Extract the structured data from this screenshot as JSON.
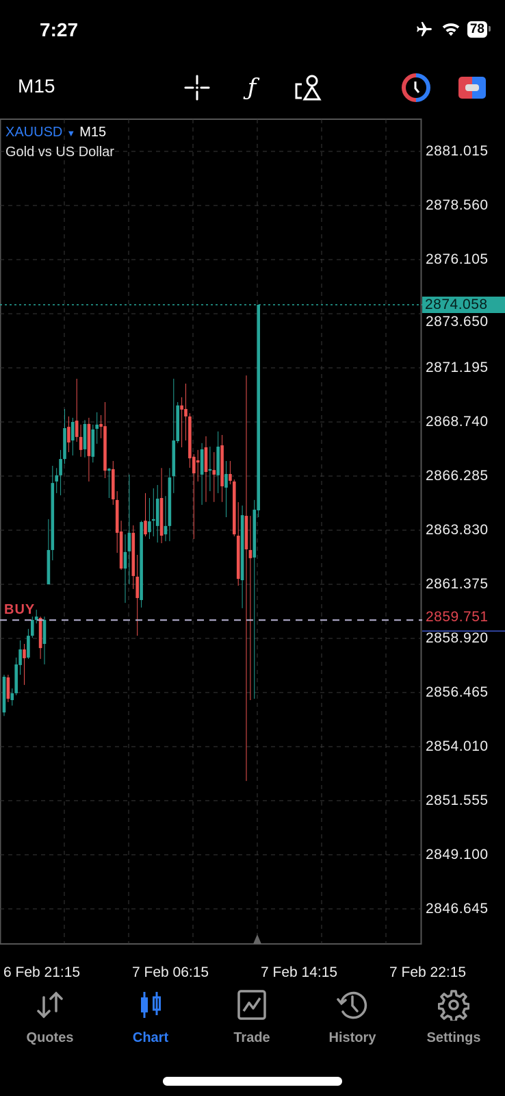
{
  "status_bar": {
    "time": "7:27",
    "battery": "78",
    "icons": [
      "airplane-icon",
      "wifi-icon",
      "battery-icon"
    ]
  },
  "toolbar": {
    "timeframe": "M15",
    "tools": [
      "crosshair-icon",
      "indicators-f-icon",
      "objects-icon",
      "one-click-trading-icon",
      "trade-panel-icon"
    ]
  },
  "chart_header": {
    "symbol": "XAUUSD",
    "timeframe": "M15",
    "description": "Gold vs US Dollar"
  },
  "colors": {
    "bull": "#26a69a",
    "bear": "#ef5350",
    "accent": "#2f7cf6",
    "buy_line": "#b9b4d6",
    "grid": "#3a3a3a"
  },
  "chart_data": {
    "type": "candlestick",
    "y_ticks": [
      "2881.015",
      "2878.560",
      "2876.105",
      "2873.650",
      "2871.195",
      "2868.740",
      "2866.285",
      "2863.830",
      "2861.375",
      "2858.920",
      "2856.465",
      "2854.010",
      "2851.555",
      "2849.100",
      "2846.645"
    ],
    "ylim": [
      2845.5,
      2882.6
    ],
    "x_ticks": [
      "6 Feb 21:15",
      "7 Feb 06:15",
      "7 Feb 14:15",
      "7 Feb 22:15"
    ],
    "grid": true,
    "current_price": "2874.058",
    "buy_position": {
      "label": "BUY",
      "price": "2859.751"
    },
    "candles": [
      [
        2855.56,
        2857.27,
        2855.4,
        2857.18
      ],
      [
        2857.15,
        2857.27,
        2856.03,
        2856.18
      ],
      [
        2856.12,
        2856.65,
        2855.87,
        2856.43
      ],
      [
        2856.43,
        2858.05,
        2856.34,
        2857.74
      ],
      [
        2857.71,
        2858.83,
        2857.27,
        2858.42
      ],
      [
        2858.42,
        2858.67,
        2856.81,
        2858.02
      ],
      [
        2858.05,
        2859.35,
        2857.99,
        2859.04
      ],
      [
        2859.04,
        2859.91,
        2858.95,
        2859.76
      ],
      [
        2859.76,
        2860.22,
        2859.6,
        2859.91
      ],
      [
        2859.85,
        2859.91,
        2857.99,
        2858.48
      ],
      [
        2858.67,
        2859.91,
        2857.74,
        2859.76
      ],
      [
        2861.37,
        2864.33,
        2861.37,
        2862.93
      ],
      [
        2862.93,
        2866.75,
        2862.46,
        2865.97
      ],
      [
        2866.04,
        2866.65,
        2865.51,
        2866.32
      ],
      [
        2866.32,
        2867.47,
        2865.41,
        2867.06
      ],
      [
        2867.06,
        2869.33,
        2866.84,
        2868.46
      ],
      [
        2868.52,
        2868.99,
        2867.37,
        2867.81
      ],
      [
        2867.9,
        2868.93,
        2867.22,
        2868.74
      ],
      [
        2868.8,
        2870.7,
        2867.84,
        2868.06
      ],
      [
        2868.06,
        2868.62,
        2867.16,
        2867.47
      ],
      [
        2867.5,
        2868.83,
        2867.13,
        2868.65
      ],
      [
        2868.65,
        2868.93,
        2866.04,
        2867.19
      ],
      [
        2867.16,
        2868.62,
        2866.9,
        2868.4
      ],
      [
        2868.43,
        2869.18,
        2867.75,
        2868.62
      ],
      [
        2868.65,
        2869.05,
        2868.0,
        2868.52
      ],
      [
        2868.55,
        2869.64,
        2866.19,
        2866.53
      ],
      [
        2866.53,
        2866.65,
        2865.29,
        2866.62
      ],
      [
        2866.6,
        2866.97,
        2864.98,
        2865.23
      ],
      [
        2865.2,
        2865.6,
        2862.8,
        2863.71
      ],
      [
        2863.77,
        2864.26,
        2862.03,
        2862.09
      ],
      [
        2862.09,
        2863.64,
        2860.53,
        2862.84
      ],
      [
        2862.87,
        2866.35,
        2861.37,
        2863.71
      ],
      [
        2863.71,
        2864.05,
        2861.16,
        2861.75
      ],
      [
        2861.72,
        2862.71,
        2859.04,
        2860.75
      ],
      [
        2860.66,
        2864.26,
        2860.32,
        2864.2
      ],
      [
        2864.26,
        2865.51,
        2863.55,
        2863.64
      ],
      [
        2863.74,
        2865.29,
        2863.43,
        2864.23
      ],
      [
        2864.26,
        2865.73,
        2863.55,
        2864.33
      ],
      [
        2864.02,
        2865.88,
        2863.27,
        2865.26
      ],
      [
        2865.29,
        2866.65,
        2863.24,
        2863.58
      ],
      [
        2863.64,
        2865.38,
        2863.33,
        2864.02
      ],
      [
        2864.02,
        2866.65,
        2863.33,
        2866.22
      ],
      [
        2866.28,
        2870.7,
        2865.51,
        2867.9
      ],
      [
        2867.87,
        2869.64,
        2867.78,
        2869.49
      ],
      [
        2869.49,
        2869.86,
        2867.59,
        2869.3
      ],
      [
        2869.33,
        2870.48,
        2867.9,
        2868.99
      ],
      [
        2868.99,
        2869.14,
        2866.66,
        2867.09
      ],
      [
        2867.16,
        2867.28,
        2863.43,
        2866.41
      ],
      [
        2867.0,
        2867.47,
        2866.04,
        2866.9
      ],
      [
        2866.35,
        2867.78,
        2864.98,
        2867.5
      ],
      [
        2867.59,
        2868.09,
        2865.11,
        2866.47
      ],
      [
        2866.53,
        2867.62,
        2865.6,
        2866.6
      ],
      [
        2866.56,
        2867.37,
        2865.11,
        2866.35
      ],
      [
        2866.32,
        2868.31,
        2865.51,
        2867.62
      ],
      [
        2867.68,
        2868.15,
        2865.11,
        2865.82
      ],
      [
        2865.76,
        2866.97,
        2864.42,
        2866.38
      ],
      [
        2866.38,
        2866.97,
        2865.91,
        2866.07
      ],
      [
        2866.04,
        2866.13,
        2863.55,
        2863.64
      ],
      [
        2863.58,
        2865.1,
        2861.31,
        2861.62
      ],
      [
        2861.56,
        2864.95,
        2860.29,
        2864.51
      ],
      [
        2864.48,
        2870.85,
        2852.45,
        2862.96
      ],
      [
        2862.93,
        2864.48,
        2856.12,
        2862.56
      ],
      [
        2862.59,
        2865.2,
        2856.18,
        2864.76
      ],
      [
        2864.73,
        2874.06,
        2864.42,
        2874.058
      ]
    ]
  },
  "tabs": [
    {
      "label": "Quotes",
      "icon": "quotes-arrows-icon"
    },
    {
      "label": "Chart",
      "icon": "chart-candles-icon",
      "active": true
    },
    {
      "label": "Trade",
      "icon": "trade-icon"
    },
    {
      "label": "History",
      "icon": "history-icon"
    },
    {
      "label": "Settings",
      "icon": "settings-gear-icon"
    }
  ]
}
